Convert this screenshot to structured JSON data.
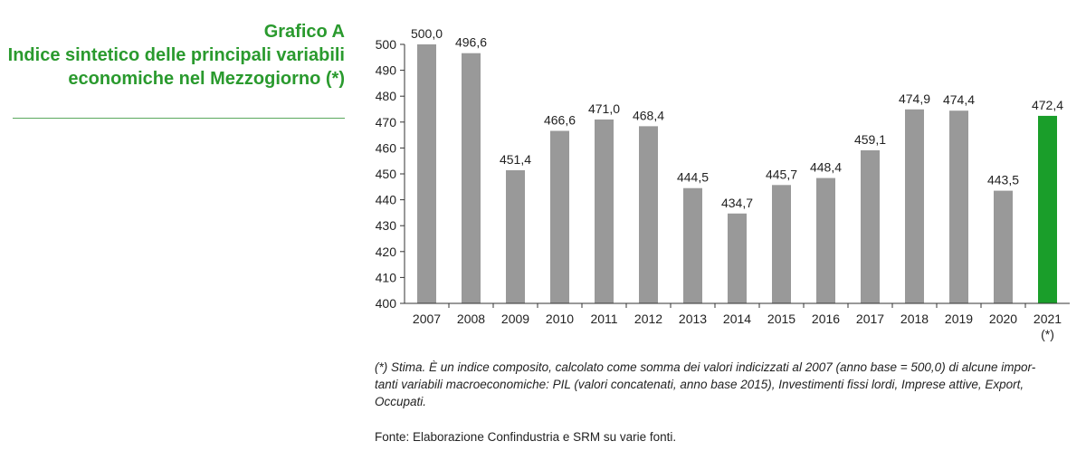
{
  "header": {
    "title_line1": "Grafico A",
    "title_line2": "Indice sintetico delle principali variabili",
    "title_line3": "economiche nel Mezzogiorno (*)"
  },
  "chart_data": {
    "type": "bar",
    "categories": [
      "2007",
      "2008",
      "2009",
      "2010",
      "2011",
      "2012",
      "2013",
      "2014",
      "2015",
      "2016",
      "2017",
      "2018",
      "2019",
      "2020",
      "2021"
    ],
    "category_sublabels": [
      "",
      "",
      "",
      "",
      "",
      "",
      "",
      "",
      "",
      "",
      "",
      "",
      "",
      "",
      "(*)"
    ],
    "values": [
      500.0,
      496.6,
      451.4,
      466.6,
      471.0,
      468.4,
      444.5,
      434.7,
      445.7,
      448.4,
      459.1,
      474.9,
      474.4,
      443.5,
      472.4
    ],
    "data_labels": [
      "500,0",
      "496,6",
      "451,4",
      "466,6",
      "471,0",
      "468,4",
      "444,5",
      "434,7",
      "445,7",
      "448,4",
      "459,1",
      "474,9",
      "474,4",
      "443,5",
      "472,4"
    ],
    "ylim": [
      400,
      500
    ],
    "yticks": [
      400,
      410,
      420,
      430,
      440,
      450,
      460,
      470,
      480,
      490,
      500
    ],
    "bar_color": "#999999",
    "highlight_color": "#1a9e2a",
    "highlight_index": 14,
    "grid": false,
    "legend": "none"
  },
  "footer": {
    "note_line1": "(*) Stima. È un indice composito, calcolato come somma dei valori indicizzati al 2007 (anno base = 500,0) di alcune impor-",
    "note_line2": "tanti variabili macroeconomiche: PIL (valori concatenati, anno base 2015), Investimenti fissi lordi, Imprese attive, Export,",
    "note_line3": "Occupati.",
    "source": "Fonte: Elaborazione Confindustria e SRM su varie fonti."
  }
}
